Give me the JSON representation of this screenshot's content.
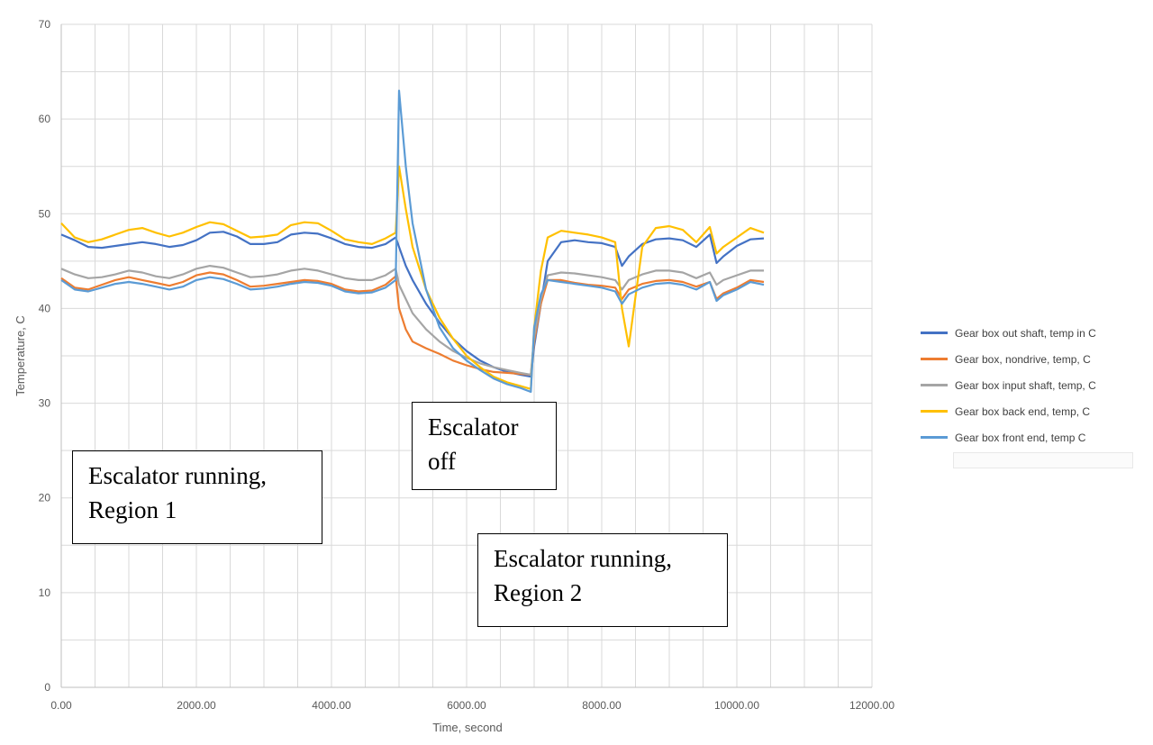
{
  "chart_data": {
    "type": "line",
    "title": "",
    "xlabel": "Time, second",
    "ylabel": "Temperature, C",
    "xlim": [
      0,
      12000
    ],
    "ylim": [
      0,
      70
    ],
    "x_ticks": [
      "0.00",
      "2000.00",
      "4000.00",
      "6000.00",
      "8000.00",
      "10000.00",
      "12000.00"
    ],
    "y_ticks": [
      "0",
      "10",
      "20",
      "30",
      "40",
      "50",
      "60",
      "70"
    ],
    "grid": true,
    "legend_position": "right",
    "x": [
      0,
      200,
      400,
      600,
      800,
      1000,
      1200,
      1400,
      1600,
      1800,
      2000,
      2200,
      2400,
      2600,
      2800,
      3000,
      3200,
      3400,
      3600,
      3800,
      4000,
      4200,
      4400,
      4600,
      4800,
      4950,
      5000,
      5100,
      5200,
      5400,
      5600,
      5800,
      6000,
      6200,
      6400,
      6600,
      6800,
      6950,
      7000,
      7100,
      7200,
      7400,
      7600,
      7800,
      8000,
      8200,
      8300,
      8400,
      8600,
      8800,
      9000,
      9200,
      9400,
      9600,
      9700,
      9800,
      10000,
      10200,
      10400
    ],
    "series": [
      {
        "name": "Gear box out shaft, temp in C",
        "color": "#4472C4",
        "values": [
          47.8,
          47.2,
          46.5,
          46.4,
          46.6,
          46.8,
          47.0,
          46.8,
          46.5,
          46.7,
          47.2,
          48.0,
          48.1,
          47.6,
          46.8,
          46.8,
          47.0,
          47.8,
          48.0,
          47.9,
          47.4,
          46.8,
          46.5,
          46.4,
          46.8,
          47.5,
          46.5,
          44.5,
          43.0,
          40.5,
          38.5,
          36.8,
          35.5,
          34.5,
          33.8,
          33.3,
          33.0,
          32.8,
          36.0,
          40.5,
          45.0,
          47.0,
          47.2,
          47.0,
          46.9,
          46.5,
          44.5,
          45.5,
          46.8,
          47.3,
          47.4,
          47.2,
          46.5,
          47.8,
          44.8,
          45.5,
          46.6,
          47.3,
          47.4
        ]
      },
      {
        "name": "Gear box, nondrive, temp, C",
        "color": "#ED7D31",
        "values": [
          43.2,
          42.2,
          42.0,
          42.5,
          43.0,
          43.3,
          43.0,
          42.7,
          42.4,
          42.8,
          43.5,
          43.8,
          43.6,
          43.0,
          42.3,
          42.4,
          42.6,
          42.8,
          43.0,
          42.9,
          42.6,
          42.0,
          41.8,
          41.9,
          42.5,
          43.4,
          40.0,
          37.8,
          36.5,
          35.8,
          35.2,
          34.5,
          34.0,
          33.6,
          33.3,
          33.2,
          33.1,
          33.0,
          36.5,
          40.5,
          43.0,
          43.0,
          42.7,
          42.5,
          42.4,
          42.2,
          41.0,
          42.0,
          42.6,
          42.9,
          43.0,
          42.8,
          42.3,
          42.8,
          41.0,
          41.6,
          42.2,
          43.0,
          42.8
        ]
      },
      {
        "name": "Gear box input shaft, temp, C",
        "color": "#A5A5A5",
        "values": [
          44.2,
          43.6,
          43.2,
          43.3,
          43.6,
          44.0,
          43.8,
          43.4,
          43.2,
          43.6,
          44.2,
          44.5,
          44.3,
          43.8,
          43.3,
          43.4,
          43.6,
          44.0,
          44.2,
          44.0,
          43.6,
          43.2,
          43.0,
          43.0,
          43.5,
          44.2,
          42.5,
          41.0,
          39.5,
          37.8,
          36.5,
          35.5,
          34.8,
          34.2,
          33.8,
          33.5,
          33.2,
          33.0,
          37.0,
          41.0,
          43.5,
          43.8,
          43.7,
          43.5,
          43.3,
          43.0,
          42.0,
          43.0,
          43.6,
          44.0,
          44.0,
          43.8,
          43.2,
          43.8,
          42.5,
          43.0,
          43.5,
          44.0,
          44.0
        ]
      },
      {
        "name": "Gear box back end, temp, C",
        "color": "#FFC000",
        "values": [
          49.0,
          47.5,
          47.0,
          47.3,
          47.8,
          48.3,
          48.5,
          48.0,
          47.6,
          48.0,
          48.6,
          49.1,
          48.9,
          48.2,
          47.5,
          47.6,
          47.8,
          48.8,
          49.1,
          49.0,
          48.2,
          47.3,
          47.0,
          46.8,
          47.4,
          48.0,
          55.0,
          50.5,
          46.5,
          42.0,
          39.0,
          36.8,
          35.0,
          33.8,
          32.8,
          32.2,
          31.8,
          31.5,
          38.0,
          44.0,
          47.5,
          48.2,
          48.0,
          47.8,
          47.5,
          47.0,
          40.0,
          36.0,
          46.5,
          48.5,
          48.7,
          48.3,
          47.0,
          48.6,
          45.8,
          46.5,
          47.5,
          48.5,
          48.0
        ]
      },
      {
        "name": "Gear box front end, temp C",
        "color": "#5B9BD5",
        "values": [
          43.0,
          42.0,
          41.8,
          42.2,
          42.6,
          42.8,
          42.6,
          42.3,
          42.0,
          42.3,
          43.0,
          43.3,
          43.1,
          42.6,
          42.0,
          42.1,
          42.3,
          42.6,
          42.8,
          42.7,
          42.4,
          41.8,
          41.6,
          41.7,
          42.2,
          43.0,
          63.0,
          55.0,
          49.0,
          42.0,
          38.0,
          35.8,
          34.5,
          33.5,
          32.6,
          32.0,
          31.6,
          31.2,
          38.0,
          41.5,
          43.0,
          42.8,
          42.6,
          42.4,
          42.2,
          41.8,
          40.5,
          41.5,
          42.2,
          42.6,
          42.7,
          42.5,
          42.0,
          42.8,
          40.8,
          41.4,
          42.0,
          42.8,
          42.5
        ]
      }
    ],
    "annotations": [
      "Escalator running,\nRegion 1",
      "Escalator\noff",
      "Escalator running,\nRegion 2"
    ]
  },
  "colors": {
    "gridline": "#d9d9d9",
    "axis": "#bfbfbf",
    "tick_text": "#595959"
  }
}
